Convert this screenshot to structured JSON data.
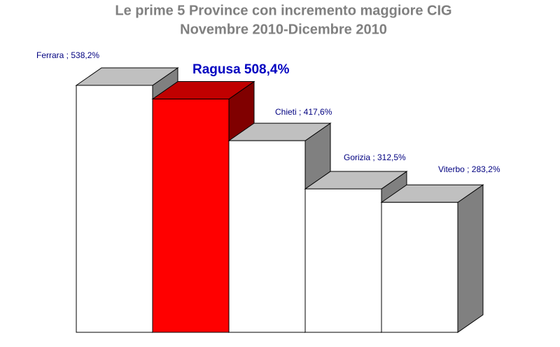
{
  "chart_data": {
    "type": "bar3d",
    "title": [
      "Le prime 5 Province con incremento maggiore CIG",
      "Novembre 2010-Dicembre 2010"
    ],
    "categories": [
      "Ferrara",
      "Ragusa",
      "Chieti",
      "Gorizia",
      "Viterbo"
    ],
    "values": [
      538.2,
      508.4,
      417.6,
      312.5,
      283.2
    ],
    "value_labels": [
      "Ferrara ; 538,2%",
      "Ragusa 508,4%",
      "Chieti  ; 417,6%",
      "Gorizia  ; 312,5%",
      "Viterbo  ; 283,2%"
    ],
    "colors": [
      "#ffffff",
      "#ff0000",
      "#ffffff",
      "#ffffff",
      "#ffffff"
    ]
  }
}
